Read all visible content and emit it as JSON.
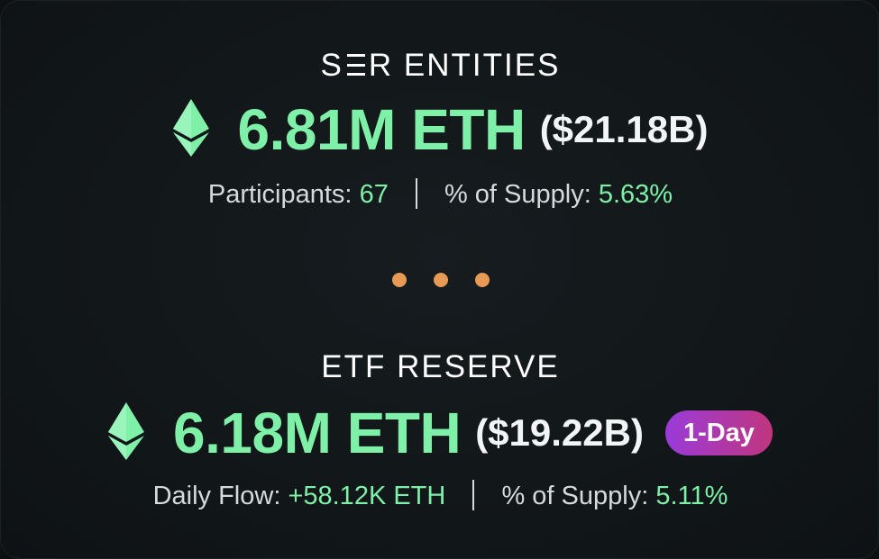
{
  "blocks": [
    {
      "title_pre": "S",
      "title_post": "R ENTITIES",
      "amount": "6.81M ETH",
      "usd": "($21.18B)",
      "stat1_label": "Participants: ",
      "stat1_value": "67",
      "stat2_label": "% of Supply: ",
      "stat2_value": "5.63%"
    },
    {
      "title": "ETF RESERVE",
      "amount": "6.18M ETH",
      "usd": "($19.22B)",
      "badge": "1-Day",
      "stat1_label": "Daily Flow: ",
      "stat1_value": "+58.12K ETH",
      "stat2_label": "% of Supply: ",
      "stat2_value": "5.11%"
    }
  ],
  "colors": {
    "accent_green": "#7ef0a8",
    "dot_orange": "#e89a55",
    "badge_gradient_start": "#9a3bd9",
    "badge_gradient_end": "#c0367e"
  },
  "icons": [
    "ethereum-icon",
    "separator-dots"
  ]
}
